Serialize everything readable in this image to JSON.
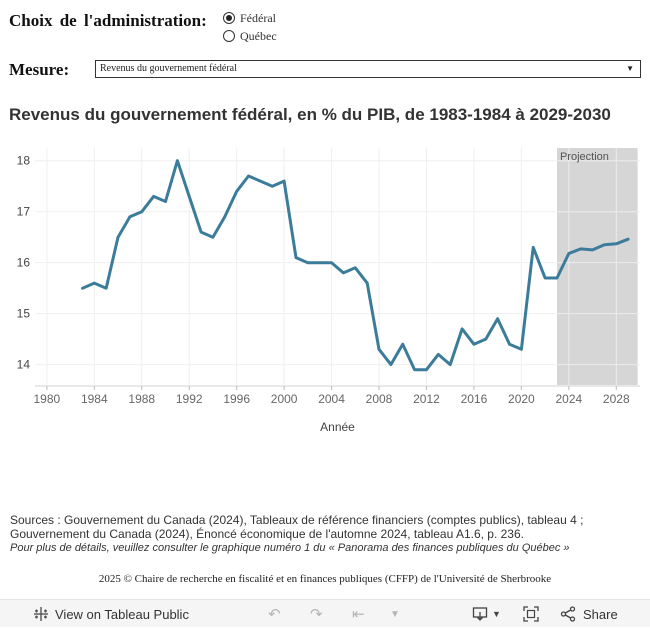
{
  "controls": {
    "admin_label": "Choix de l'administration:",
    "admin_options": [
      {
        "label": "Fédéral",
        "selected": true
      },
      {
        "label": "Québec",
        "selected": false
      }
    ],
    "measure_label": "Mesure:",
    "measure_value": "Revenus du gouvernement fédéral"
  },
  "chart_data": {
    "type": "line",
    "title": "Revenus du gouvernement fédéral, en % du PIB, de 1983-1984 à 2029-2030",
    "xlabel": "Année",
    "ylabel": "",
    "xlim": [
      1979,
      2030
    ],
    "ylim": [
      13.6,
      18.25
    ],
    "x_ticks": [
      1980,
      1984,
      1988,
      1992,
      1996,
      2000,
      2004,
      2008,
      2012,
      2016,
      2020,
      2024,
      2028
    ],
    "y_ticks": [
      14,
      15,
      16,
      17,
      18
    ],
    "grid": true,
    "line_color": "#3b7c9a",
    "projection": {
      "label": "Projection",
      "start": 2023,
      "end": 2029.8,
      "color": "#d6d6d6"
    },
    "series": [
      {
        "x": [
          1983,
          1984,
          1985,
          1986,
          1987,
          1988,
          1989,
          1990,
          1991,
          1992,
          1993,
          1994,
          1995,
          1996,
          1997,
          1998,
          1999,
          2000,
          2001,
          2002,
          2003,
          2004,
          2005,
          2006,
          2007,
          2008,
          2009,
          2010,
          2011,
          2012,
          2013,
          2014,
          2015,
          2016,
          2017,
          2018,
          2019,
          2020,
          2021,
          2022,
          2023,
          2024,
          2025,
          2026,
          2027,
          2028,
          2029
        ],
        "y": [
          15.5,
          15.6,
          15.5,
          16.5,
          16.9,
          17.0,
          17.3,
          17.2,
          18.0,
          17.3,
          16.6,
          16.5,
          16.9,
          17.4,
          17.7,
          17.6,
          17.5,
          17.6,
          16.1,
          16.0,
          16.0,
          16.0,
          15.8,
          15.9,
          15.6,
          14.3,
          14.0,
          14.4,
          13.9,
          13.9,
          14.2,
          14.0,
          14.7,
          14.4,
          14.5,
          14.9,
          14.4,
          14.3,
          16.3,
          15.7,
          15.7,
          16.18,
          16.27,
          16.25,
          16.35,
          16.37,
          16.46
        ]
      }
    ]
  },
  "sources": {
    "line1": "Sources : Gouvernement du Canada (2024), Tableaux de référence financiers (comptes publics), tableau 4 ;",
    "line2": "Gouvernement du Canada (2024), Énoncé économique de l'automne 2024, tableau A1.6, p. 236.",
    "line3": "Pour plus de détails, veuillez consulter le graphique numéro 1 du « Panorama des finances publiques du Québec »"
  },
  "copyright": "2025 © Chaire de recherche en fiscalité et en finances publiques (CFFP) de l'Université de Sherbrooke",
  "toolbar": {
    "view_label": "View on Tableau Public",
    "share_label": "Share",
    "icons": {
      "tableau": "tableau-logo-icon",
      "undo": "undo-icon",
      "redo": "redo-icon",
      "revert": "revert-icon",
      "download": "download-icon",
      "fullscreen": "fullscreen-icon",
      "share": "share-icon"
    }
  }
}
